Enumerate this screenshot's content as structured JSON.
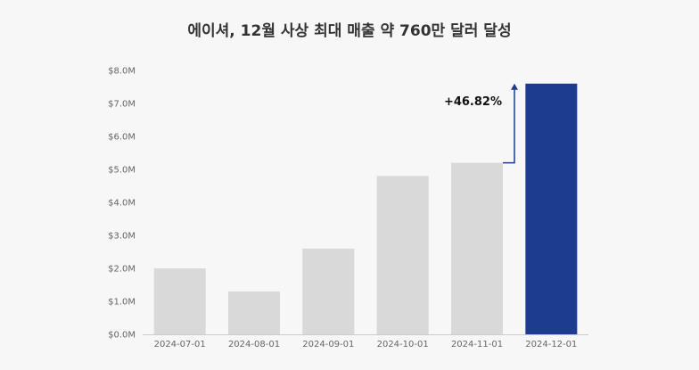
{
  "chart_data": {
    "type": "bar",
    "title": "에이셔, 12월 사상 최대 매출 약 760만 달러 달성",
    "xlabel": "",
    "ylabel": "",
    "categories": [
      "2024-07-01",
      "2024-08-01",
      "2024-09-01",
      "2024-10-01",
      "2024-11-01",
      "2024-12-01"
    ],
    "values": [
      2.0,
      1.3,
      2.6,
      4.8,
      5.2,
      7.6
    ],
    "value_unit": "$M",
    "ylim": [
      0,
      8
    ],
    "y_ticks": [
      "$0.0M",
      "$1.0M",
      "$2.0M",
      "$3.0M",
      "$4.0M",
      "$5.0M",
      "$6.0M",
      "$7.0M",
      "$8.0M"
    ],
    "grid": false,
    "legend": "none",
    "highlight_index": 5,
    "annotation": {
      "text": "+46.82%",
      "from_index": 4,
      "to_index": 5
    },
    "colors": {
      "bar": "#d9d9d9",
      "highlight": "#1c3c8f",
      "arrow": "#1c3c8f"
    }
  }
}
